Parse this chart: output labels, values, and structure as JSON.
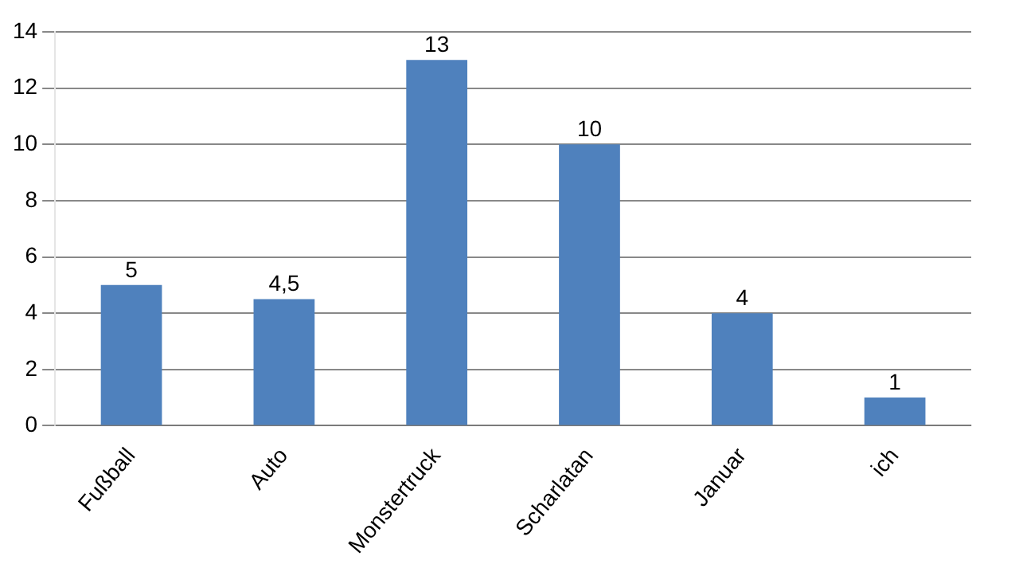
{
  "chart_data": {
    "type": "bar",
    "categories": [
      "Fußball",
      "Auto",
      "Monstertruck",
      "Scharlatan",
      "Januar",
      "ich"
    ],
    "values": [
      5,
      4.5,
      13,
      10,
      4,
      1
    ],
    "value_labels": [
      "5",
      "4,5",
      "13",
      "10",
      "4",
      "1"
    ],
    "color": "#4f81bd",
    "ylim": [
      0,
      14
    ],
    "yticks": [
      0,
      2,
      4,
      6,
      8,
      10,
      12,
      14
    ],
    "grid": "y",
    "legend": false
  }
}
